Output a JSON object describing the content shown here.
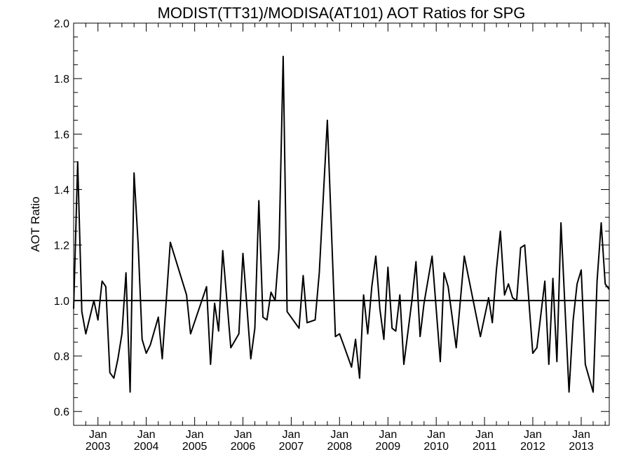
{
  "chart_data": {
    "type": "line",
    "title": "MODIST(TT31)/MODISA(AT101)  AOT Ratios for SPG",
    "xlabel": "",
    "ylabel": "AOT Ratio",
    "xlim": [
      "2002-07-01",
      "2013-08-01"
    ],
    "ylim": [
      0.55,
      2.0
    ],
    "yticks": [
      "0.6",
      "0.8",
      "1.0",
      "1.2",
      "1.4",
      "1.6",
      "1.8",
      "2.0"
    ],
    "xticks": [
      {
        "date": "2003-01-01",
        "label": "Jan",
        "year": "2003"
      },
      {
        "date": "2004-01-01",
        "label": "Jan",
        "year": "2004"
      },
      {
        "date": "2005-01-01",
        "label": "Jan",
        "year": "2005"
      },
      {
        "date": "2006-01-01",
        "label": "Jan",
        "year": "2006"
      },
      {
        "date": "2007-01-01",
        "label": "Jan",
        "year": "2007"
      },
      {
        "date": "2008-01-01",
        "label": "Jan",
        "year": "2008"
      },
      {
        "date": "2009-01-01",
        "label": "Jan",
        "year": "2009"
      },
      {
        "date": "2010-01-01",
        "label": "Jan",
        "year": "2010"
      },
      {
        "date": "2011-01-01",
        "label": "Jan",
        "year": "2011"
      },
      {
        "date": "2012-01-01",
        "label": "Jan",
        "year": "2012"
      },
      {
        "date": "2013-01-01",
        "label": "Jan",
        "year": "2013"
      }
    ],
    "reference_line": 1.0,
    "grid": false,
    "series": [
      {
        "color": "#000000",
        "points": [
          [
            "2002-07-01",
            0.97
          ],
          [
            "2002-08-01",
            1.5
          ],
          [
            "2002-09-01",
            0.96
          ],
          [
            "2002-10-01",
            0.88
          ],
          [
            "2002-11-01",
            0.94
          ],
          [
            "2002-12-01",
            1.0
          ],
          [
            "2003-01-01",
            0.93
          ],
          [
            "2003-02-01",
            1.07
          ],
          [
            "2003-03-01",
            1.05
          ],
          [
            "2003-04-01",
            0.74
          ],
          [
            "2003-05-01",
            0.72
          ],
          [
            "2003-06-01",
            0.79
          ],
          [
            "2003-07-01",
            0.88
          ],
          [
            "2003-08-01",
            1.1
          ],
          [
            "2003-09-01",
            0.67
          ],
          [
            "2003-10-01",
            1.46
          ],
          [
            "2003-11-01",
            1.2
          ],
          [
            "2003-12-01",
            0.86
          ],
          [
            "2004-01-01",
            0.81
          ],
          [
            "2004-02-01",
            0.84
          ],
          [
            "2004-04-01",
            0.94
          ],
          [
            "2004-05-01",
            0.79
          ],
          [
            "2004-07-01",
            1.21
          ],
          [
            "2004-11-01",
            1.02
          ],
          [
            "2004-12-01",
            0.88
          ],
          [
            "2005-04-01",
            1.05
          ],
          [
            "2005-05-01",
            0.77
          ],
          [
            "2005-06-01",
            0.99
          ],
          [
            "2005-07-01",
            0.89
          ],
          [
            "2005-08-01",
            1.18
          ],
          [
            "2005-10-01",
            0.83
          ],
          [
            "2005-12-01",
            0.88
          ],
          [
            "2006-01-01",
            1.17
          ],
          [
            "2006-03-01",
            0.79
          ],
          [
            "2006-04-01",
            0.9
          ],
          [
            "2006-05-01",
            1.36
          ],
          [
            "2006-06-01",
            0.94
          ],
          [
            "2006-07-01",
            0.93
          ],
          [
            "2006-08-01",
            1.03
          ],
          [
            "2006-09-01",
            1.0
          ],
          [
            "2006-10-01",
            1.19
          ],
          [
            "2006-11-01",
            1.88
          ],
          [
            "2006-12-01",
            0.96
          ],
          [
            "2007-03-01",
            0.9
          ],
          [
            "2007-04-01",
            1.09
          ],
          [
            "2007-05-01",
            0.92
          ],
          [
            "2007-07-01",
            0.93
          ],
          [
            "2007-08-01",
            1.1
          ],
          [
            "2007-10-01",
            1.65
          ],
          [
            "2007-12-01",
            0.87
          ],
          [
            "2008-01-01",
            0.88
          ],
          [
            "2008-02-01",
            0.84
          ],
          [
            "2008-04-01",
            0.76
          ],
          [
            "2008-05-01",
            0.86
          ],
          [
            "2008-06-01",
            0.72
          ],
          [
            "2008-07-01",
            1.02
          ],
          [
            "2008-08-01",
            0.88
          ],
          [
            "2008-09-01",
            1.05
          ],
          [
            "2008-10-01",
            1.16
          ],
          [
            "2008-11-01",
            0.97
          ],
          [
            "2008-12-01",
            0.86
          ],
          [
            "2009-01-01",
            1.12
          ],
          [
            "2009-02-01",
            0.9
          ],
          [
            "2009-03-01",
            0.89
          ],
          [
            "2009-04-01",
            1.02
          ],
          [
            "2009-05-01",
            0.77
          ],
          [
            "2009-07-01",
            1.0
          ],
          [
            "2009-08-01",
            1.14
          ],
          [
            "2009-09-01",
            0.87
          ],
          [
            "2009-10-01",
            0.99
          ],
          [
            "2009-12-01",
            1.16
          ],
          [
            "2010-02-01",
            0.78
          ],
          [
            "2010-03-01",
            1.1
          ],
          [
            "2010-04-01",
            1.05
          ],
          [
            "2010-06-01",
            0.83
          ],
          [
            "2010-08-01",
            1.16
          ],
          [
            "2010-12-01",
            0.87
          ],
          [
            "2011-02-01",
            1.01
          ],
          [
            "2011-03-01",
            0.92
          ],
          [
            "2011-04-01",
            1.11
          ],
          [
            "2011-05-01",
            1.25
          ],
          [
            "2011-06-01",
            1.02
          ],
          [
            "2011-07-01",
            1.06
          ],
          [
            "2011-08-01",
            1.01
          ],
          [
            "2011-09-01",
            1.0
          ],
          [
            "2011-10-01",
            1.19
          ],
          [
            "2011-11-01",
            1.2
          ],
          [
            "2012-01-01",
            0.81
          ],
          [
            "2012-02-01",
            0.83
          ],
          [
            "2012-04-01",
            1.07
          ],
          [
            "2012-05-01",
            0.77
          ],
          [
            "2012-06-01",
            1.08
          ],
          [
            "2012-07-01",
            0.78
          ],
          [
            "2012-08-01",
            1.28
          ],
          [
            "2012-10-01",
            0.67
          ],
          [
            "2012-11-01",
            0.93
          ],
          [
            "2012-12-01",
            1.06
          ],
          [
            "2013-01-01",
            1.11
          ],
          [
            "2013-02-01",
            0.77
          ],
          [
            "2013-04-01",
            0.67
          ],
          [
            "2013-05-01",
            1.07
          ],
          [
            "2013-06-01",
            1.28
          ],
          [
            "2013-07-01",
            1.06
          ],
          [
            "2013-08-01",
            1.04
          ]
        ]
      }
    ]
  }
}
